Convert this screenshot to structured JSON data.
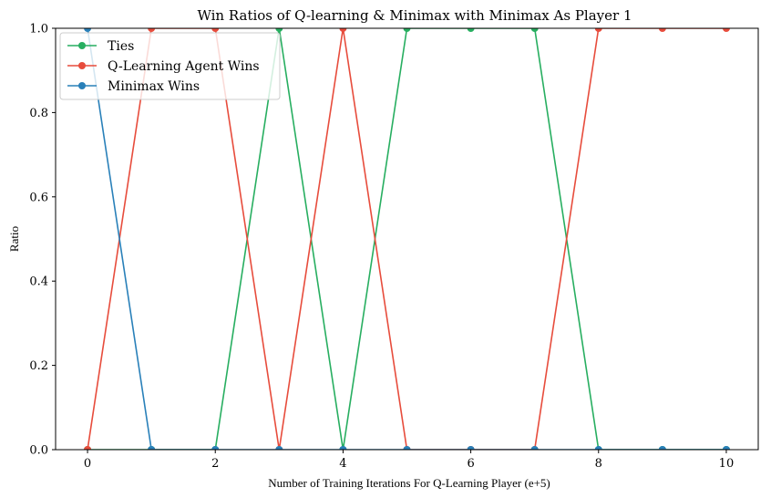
{
  "chart_data": {
    "type": "line",
    "title": "Win Ratios of Q-learning & Minimax with Minimax As Player 1",
    "xlabel": "Number of Training Iterations For Q-Learning Player (e+5)",
    "ylabel": "Ratio",
    "x": [
      0,
      1,
      2,
      3,
      4,
      5,
      6,
      7,
      8,
      9,
      10
    ],
    "xlim": [
      -0.5,
      10.5
    ],
    "ylim": [
      0,
      1
    ],
    "xticks": [
      0,
      2,
      4,
      6,
      8,
      10
    ],
    "yticks": [
      0.0,
      0.2,
      0.4,
      0.6,
      0.8,
      1.0
    ],
    "xtick_labels": [
      "0",
      "2",
      "4",
      "6",
      "8",
      "10"
    ],
    "ytick_labels": [
      "0.0",
      "0.2",
      "0.4",
      "0.6",
      "0.8",
      "1.0"
    ],
    "grid": false,
    "legend_position": "top-left",
    "series": [
      {
        "name": "Ties",
        "color": "#27ae60",
        "values": [
          0,
          0,
          0,
          1,
          0,
          1,
          1,
          1,
          0,
          0,
          0
        ]
      },
      {
        "name": "Q-Learning Agent Wins",
        "color": "#e74c3c",
        "values": [
          0,
          1,
          1,
          0,
          1,
          0,
          0,
          0,
          1,
          1,
          1
        ]
      },
      {
        "name": "Minimax Wins",
        "color": "#2980b9",
        "values": [
          1,
          0,
          0,
          0,
          0,
          0,
          0,
          0,
          0,
          0,
          0
        ]
      }
    ]
  }
}
